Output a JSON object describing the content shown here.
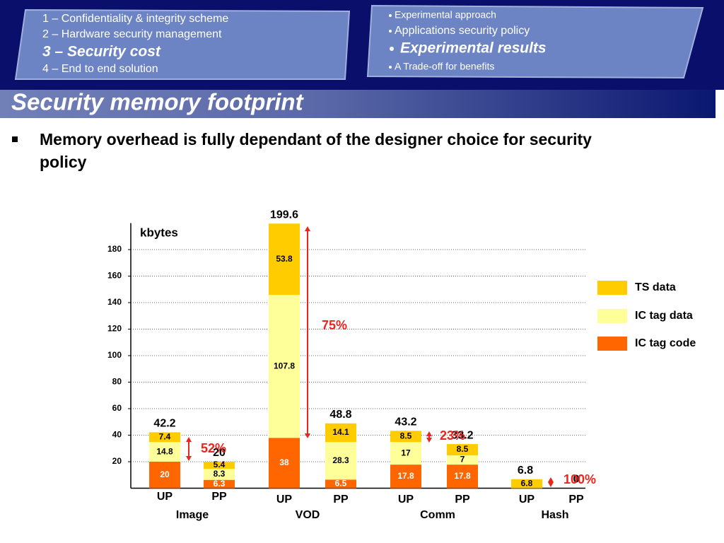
{
  "header": {
    "left_items": [
      "1 – Confidentiality & integrity scheme",
      "2 – Hardware security management",
      "3 – Security cost",
      "4 – End to end solution"
    ],
    "right_items": [
      "Experimental approach",
      "Applications security policy",
      "Experimental results",
      "A Trade-off for benefits"
    ]
  },
  "title": "Security memory footprint",
  "bullet": "Memory overhead is fully dependant of the designer choice for security policy",
  "chart_data": {
    "type": "bar",
    "stacked": true,
    "y_label": "kbytes",
    "categories": [
      "UP",
      "PP",
      "UP",
      "PP",
      "UP",
      "PP",
      "UP",
      "PP"
    ],
    "groups": [
      "Image",
      "VOD",
      "Comm",
      "Hash"
    ],
    "series": [
      {
        "name": "TS data",
        "color": "#ffcc00",
        "values": [
          7.4,
          5.4,
          53.8,
          14.1,
          8.5,
          8.5,
          6.8,
          null
        ]
      },
      {
        "name": "IC tag data",
        "color": "#ffff99",
        "values": [
          14.8,
          8.3,
          107.8,
          28.3,
          17,
          7,
          null,
          null
        ]
      },
      {
        "name": "IC tag code",
        "color": "#ff6600",
        "values": [
          20,
          6.3,
          38,
          6.5,
          17.8,
          17.8,
          null,
          null
        ]
      }
    ],
    "totals": [
      42.2,
      20,
      199.6,
      48.8,
      43.2,
      33.2,
      6.8,
      0
    ],
    "annotations": [
      "52%",
      "75%",
      "23%",
      "100%"
    ],
    "ylim": [
      0,
      200
    ],
    "yticks": [
      20,
      40,
      60,
      80,
      100,
      120,
      140,
      160,
      180
    ],
    "grid": true,
    "legend": "right"
  }
}
